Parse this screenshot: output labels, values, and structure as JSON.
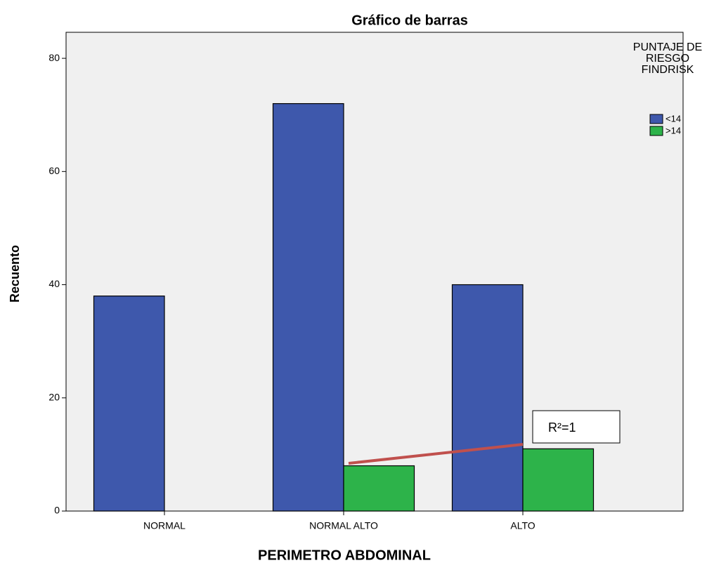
{
  "chart_data": {
    "type": "bar",
    "title": "Gráfico de barras",
    "x_label": "PERIMETRO ABDOMINAL",
    "y_label": "Recuento",
    "legend_title": "PUNTAJE DE RIESGO FINDRISK",
    "categories": [
      "NORMAL",
      "NORMAL ALTO",
      "ALTO"
    ],
    "series": [
      {
        "name": "<14",
        "color": "#3e58ac",
        "values": [
          38,
          72,
          40
        ]
      },
      {
        "name": ">14",
        "color": "#2db34a",
        "values": [
          0,
          8,
          11
        ]
      }
    ],
    "ylim": [
      0,
      84.6
    ],
    "yticks": [
      0,
      20,
      40,
      60,
      80
    ],
    "grid": false,
    "legend": "right",
    "annotation": "R²=1"
  }
}
